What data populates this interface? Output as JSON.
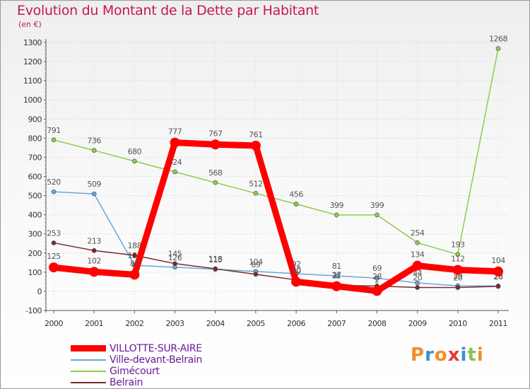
{
  "title": "Evolution du Montant de la Dette par Habitant",
  "unit_label": "(en €)",
  "logo_text": "Proxiti",
  "logo_colors": [
    "#f28c28",
    "#3a8fd6",
    "#f28c28",
    "#e53935",
    "#3a8fd6",
    "#8bc34a",
    "#f28c28"
  ],
  "chart_data": {
    "type": "line",
    "x": [
      "2000",
      "2001",
      "2002",
      "2003",
      "2004",
      "2005",
      "2006",
      "2007",
      "2008",
      "2009",
      "2010",
      "2011"
    ],
    "ylim": [
      -100,
      1300
    ],
    "yticks": [
      -100,
      0,
      100,
      200,
      300,
      400,
      500,
      600,
      700,
      800,
      900,
      1000,
      1100,
      1200,
      1300
    ],
    "grid": true,
    "legend_position": "bottom-left",
    "series": [
      {
        "name": "Gimécourt",
        "color": "#8ccc4c",
        "values": [
          791,
          736,
          680,
          624,
          568,
          512,
          456,
          399,
          399,
          254,
          193,
          1268
        ],
        "labels": [
          "791",
          "736",
          "680",
          "624",
          "568",
          "512",
          "456",
          "399",
          "399",
          "254",
          "193",
          "1268"
        ]
      },
      {
        "name": "Ville-devant-Belrain",
        "color": "#6aa6d8",
        "values": [
          520,
          509,
          136,
          126,
          115,
          104,
          92,
          81,
          69,
          44,
          29,
          28
        ],
        "labels": [
          "520",
          "509",
          "136",
          "126",
          "115",
          "104",
          "92",
          "81",
          "69",
          "44",
          "29",
          "28"
        ]
      },
      {
        "name": "Belrain",
        "color": "#7a2a2a",
        "values": [
          253,
          213,
          188,
          145,
          118,
          89,
          60,
          31,
          28,
          20,
          20,
          26
        ],
        "labels": [
          "253",
          "213",
          "188",
          "145",
          "118",
          "89",
          "60",
          "31",
          "28",
          "20",
          "20",
          "26"
        ]
      },
      {
        "name": "VILLOTTE-SUR-AIRE",
        "color": "#ff0000",
        "values": [
          125,
          102,
          87,
          777,
          767,
          761,
          50,
          27,
          2,
          134,
          112,
          104
        ],
        "labels": [
          "125",
          "102",
          "87",
          "777",
          "767",
          "761",
          "50",
          "27",
          "2",
          "134",
          "112",
          "104"
        ]
      }
    ]
  },
  "legend": [
    {
      "label": "VILLOTTE-SUR-AIRE",
      "color": "#ff0000",
      "thickness": 9
    },
    {
      "label": "Ville-devant-Belrain",
      "color": "#6aa6d8",
      "thickness": 2
    },
    {
      "label": "Gimécourt",
      "color": "#8ccc4c",
      "thickness": 2
    },
    {
      "label": "Belrain",
      "color": "#7a2a2a",
      "thickness": 2
    }
  ]
}
